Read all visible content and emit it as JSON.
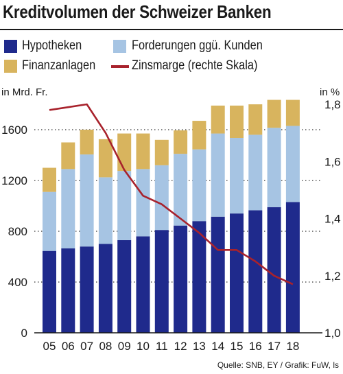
{
  "title": "Kreditvolumen der Schweizer Banken",
  "source": "Quelle: SNB, EY / Grafik: FuW, ls",
  "chart_data": {
    "type": "bar",
    "stacked": true,
    "categories": [
      "05",
      "06",
      "07",
      "08",
      "09",
      "10",
      "11",
      "12",
      "13",
      "14",
      "15",
      "16",
      "17",
      "18"
    ],
    "series": [
      {
        "name": "Hypotheken",
        "color": "#1f2a8c",
        "values": [
          645,
          665,
          680,
          700,
          730,
          760,
          810,
          845,
          880,
          915,
          940,
          965,
          990,
          1030
        ]
      },
      {
        "name": "Forderungen ggü. Kunden",
        "color": "#a6c4e3",
        "values": [
          465,
          625,
          725,
          525,
          545,
          530,
          510,
          565,
          565,
          655,
          595,
          595,
          625,
          600
        ]
      },
      {
        "name": "Finanzanlagen",
        "color": "#d8b45e",
        "values": [
          190,
          210,
          195,
          300,
          295,
          280,
          200,
          185,
          225,
          220,
          255,
          240,
          220,
          205
        ]
      }
    ],
    "line_series": {
      "name": "Zinsmarge (rechte Skala)",
      "color": "#a8222c",
      "values": [
        1.78,
        1.79,
        1.8,
        1.7,
        1.57,
        1.48,
        1.45,
        1.4,
        1.35,
        1.29,
        1.29,
        1.25,
        1.2,
        1.17
      ]
    },
    "ylabel_left": "in Mrd. Fr.",
    "ylabel_right": "in %",
    "ylim_left": [
      0,
      1800
    ],
    "yticks_left": [
      "0",
      "400",
      "800",
      "1200",
      "1600"
    ],
    "ylim_right": [
      1.0,
      1.8
    ],
    "yticks_right": [
      "1,0",
      "1,2",
      "1,4",
      "1,6",
      "1,8"
    ],
    "grid": "dotted horizontal",
    "legend": "top"
  }
}
